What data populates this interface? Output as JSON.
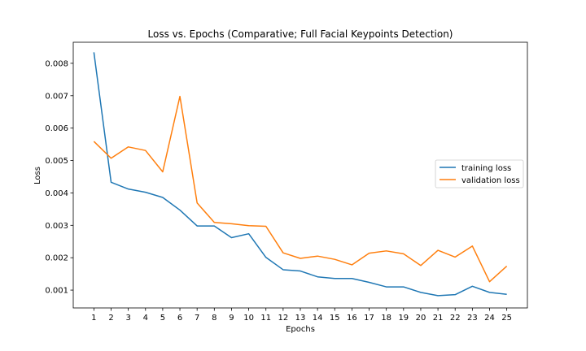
{
  "chart_data": {
    "type": "line",
    "title": "Loss vs. Epochs (Comparative; Full Facial Keypoints Detection)",
    "xlabel": "Epochs",
    "ylabel": "Loss",
    "x": [
      1,
      2,
      3,
      4,
      5,
      6,
      7,
      8,
      9,
      10,
      11,
      12,
      13,
      14,
      15,
      16,
      17,
      18,
      19,
      20,
      21,
      22,
      23,
      24,
      25
    ],
    "x_ticks": [
      "1",
      "2",
      "3",
      "4",
      "5",
      "6",
      "7",
      "8",
      "9",
      "10",
      "11",
      "12",
      "13",
      "14",
      "15",
      "16",
      "17",
      "18",
      "19",
      "20",
      "21",
      "22",
      "23",
      "24",
      "25"
    ],
    "y_ticks": [
      "0.001",
      "0.002",
      "0.003",
      "0.004",
      "0.005",
      "0.006",
      "0.007",
      "0.008"
    ],
    "xlim": [
      -0.2,
      26.2
    ],
    "ylim": [
      0.00045,
      0.00865
    ],
    "grid": false,
    "legend_position": "center-right",
    "series": [
      {
        "name": "training loss",
        "color": "#1f77b4",
        "values": [
          0.00834,
          0.00433,
          0.00412,
          0.00402,
          0.00386,
          0.00347,
          0.00298,
          0.00298,
          0.00262,
          0.00274,
          0.00201,
          0.00163,
          0.00159,
          0.00141,
          0.00136,
          0.00136,
          0.00124,
          0.0011,
          0.0011,
          0.00093,
          0.00083,
          0.00086,
          0.00112,
          0.00093,
          0.00087
        ]
      },
      {
        "name": "validation loss",
        "color": "#ff7f0e",
        "values": [
          0.00559,
          0.00507,
          0.00542,
          0.00531,
          0.00465,
          0.00698,
          0.00369,
          0.00309,
          0.00305,
          0.00299,
          0.00297,
          0.00215,
          0.00198,
          0.00205,
          0.00195,
          0.00178,
          0.00214,
          0.00221,
          0.00212,
          0.00176,
          0.00223,
          0.00202,
          0.00236,
          0.00126,
          0.00174
        ]
      }
    ]
  }
}
